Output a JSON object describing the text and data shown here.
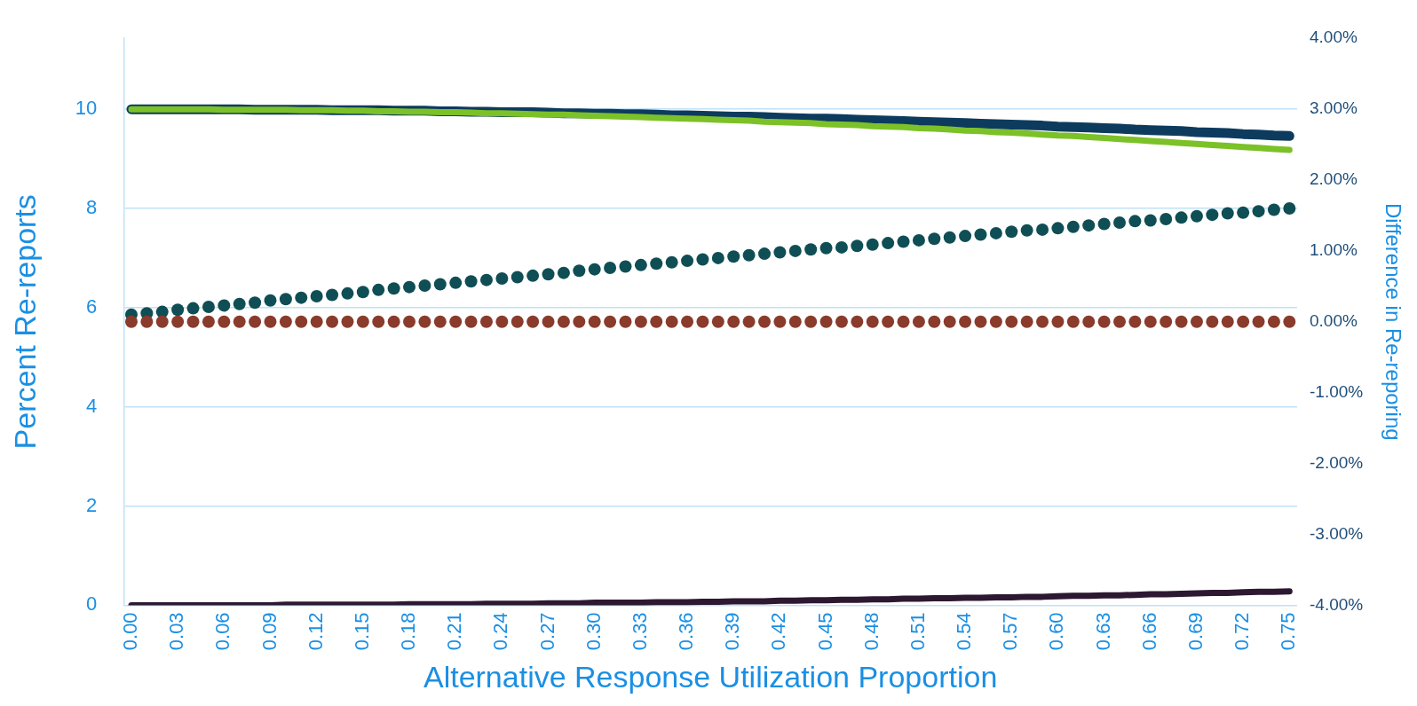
{
  "chart_data": {
    "type": "line",
    "xlabel": "Alternative Response Utilization Proportion",
    "ylabel": "Percent Re-reports",
    "y2label": "Difference in Re-reporing",
    "categories": [
      "0.00",
      null,
      null,
      "0.03",
      null,
      null,
      "0.06",
      null,
      null,
      "0.09",
      null,
      null,
      "0.12",
      null,
      null,
      "0.15",
      null,
      null,
      "0.18",
      null,
      null,
      "0.21",
      null,
      null,
      "0.24",
      null,
      null,
      "0.27",
      null,
      null,
      "0.30",
      null,
      null,
      "0.33",
      null,
      null,
      "0.36",
      null,
      null,
      "0.39",
      null,
      null,
      "0.42",
      null,
      null,
      "0.45",
      null,
      null,
      "0.48",
      null,
      null,
      "0.51",
      null,
      null,
      "0.54",
      null,
      null,
      "0.57",
      null,
      null,
      "0.60",
      null,
      null,
      "0.63",
      null,
      null,
      "0.66",
      null,
      null,
      "0.69",
      null,
      null,
      "0.72",
      null,
      null,
      "0.75"
    ],
    "ylim": [
      0,
      11.43
    ],
    "yticks": [
      0,
      2,
      4,
      6,
      8,
      10
    ],
    "y2lim": [
      -4,
      4
    ],
    "y2ticks": [
      {
        "value": -4,
        "label": "-4.00%"
      },
      {
        "value": -3,
        "label": "-3.00%"
      },
      {
        "value": -2,
        "label": "-2.00%"
      },
      {
        "value": -1,
        "label": "-1.00%"
      },
      {
        "value": 0,
        "label": "0.00%"
      },
      {
        "value": 1,
        "label": "1.00%"
      },
      {
        "value": 2,
        "label": "2.00%"
      },
      {
        "value": 3,
        "label": "3.00%"
      },
      {
        "value": 4,
        "label": "4.00%"
      }
    ],
    "grid": "y",
    "legend": false,
    "marker": "none",
    "line_style": "solid",
    "series": [
      {
        "type": "line",
        "color": "#0d3b5e",
        "values": [
          10,
          10,
          10,
          10,
          10,
          10,
          10,
          10,
          9.99,
          9.99,
          9.99,
          9.99,
          9.99,
          9.98,
          9.98,
          9.98,
          9.98,
          9.97,
          9.97,
          9.97,
          9.96,
          9.96,
          9.95,
          9.95,
          9.94,
          9.94,
          9.94,
          9.93,
          9.92,
          9.92,
          9.91,
          9.91,
          9.9,
          9.9,
          9.89,
          9.88,
          9.88,
          9.87,
          9.86,
          9.85,
          9.85,
          9.84,
          9.83,
          9.82,
          9.81,
          9.81,
          9.8,
          9.79,
          9.78,
          9.77,
          9.76,
          9.75,
          9.74,
          9.73,
          9.72,
          9.71,
          9.7,
          9.69,
          9.68,
          9.67,
          9.65,
          9.64,
          9.63,
          9.62,
          9.61,
          9.59,
          9.58,
          9.57,
          9.56,
          9.54,
          9.53,
          9.52,
          9.5,
          9.49,
          9.47,
          9.46
        ]
      },
      {
        "type": "line",
        "color": "#7cc128",
        "values": [
          10,
          10,
          10,
          10,
          10,
          10,
          9.99,
          9.99,
          9.99,
          9.99,
          9.99,
          9.98,
          9.98,
          9.98,
          9.97,
          9.97,
          9.96,
          9.96,
          9.95,
          9.95,
          9.94,
          9.94,
          9.93,
          9.92,
          9.92,
          9.91,
          9.9,
          9.89,
          9.89,
          9.88,
          9.87,
          9.86,
          9.85,
          9.84,
          9.83,
          9.82,
          9.81,
          9.8,
          9.79,
          9.78,
          9.77,
          9.75,
          9.74,
          9.73,
          9.72,
          9.7,
          9.69,
          9.68,
          9.66,
          9.65,
          9.64,
          9.62,
          9.61,
          9.59,
          9.57,
          9.56,
          9.54,
          9.53,
          9.51,
          9.49,
          9.47,
          9.46,
          9.44,
          9.42,
          9.4,
          9.38,
          9.36,
          9.34,
          9.32,
          9.3,
          9.28,
          9.26,
          9.24,
          9.22,
          9.2,
          9.18
        ]
      },
      {
        "type": "line",
        "color": "#2d1832",
        "values": [
          0,
          0,
          0,
          0,
          0,
          0,
          0,
          0,
          0,
          0,
          0.01,
          0.01,
          0.01,
          0.01,
          0.01,
          0.01,
          0.01,
          0.01,
          0.02,
          0.02,
          0.02,
          0.02,
          0.02,
          0.03,
          0.03,
          0.03,
          0.03,
          0.04,
          0.04,
          0.04,
          0.05,
          0.05,
          0.05,
          0.05,
          0.06,
          0.06,
          0.06,
          0.07,
          0.07,
          0.08,
          0.08,
          0.08,
          0.09,
          0.09,
          0.1,
          0.1,
          0.11,
          0.11,
          0.12,
          0.12,
          0.13,
          0.13,
          0.14,
          0.14,
          0.15,
          0.15,
          0.16,
          0.16,
          0.17,
          0.17,
          0.18,
          0.19,
          0.19,
          0.2,
          0.2,
          0.21,
          0.22,
          0.22,
          0.23,
          0.24,
          0.25,
          0.25,
          0.26,
          0.27,
          0.27,
          0.28
        ]
      },
      {
        "type": "scatter",
        "axis": "y2",
        "marker": "circle",
        "color": "#0f4e55",
        "values": [
          0.1,
          0.12,
          0.14,
          0.17,
          0.19,
          0.21,
          0.23,
          0.25,
          0.27,
          0.3,
          0.32,
          0.34,
          0.36,
          0.38,
          0.4,
          0.42,
          0.45,
          0.47,
          0.49,
          0.51,
          0.53,
          0.55,
          0.57,
          0.59,
          0.61,
          0.63,
          0.65,
          0.67,
          0.69,
          0.72,
          0.74,
          0.76,
          0.78,
          0.8,
          0.82,
          0.84,
          0.86,
          0.88,
          0.9,
          0.92,
          0.94,
          0.96,
          0.98,
          1,
          1.02,
          1.04,
          1.05,
          1.07,
          1.09,
          1.11,
          1.13,
          1.15,
          1.17,
          1.19,
          1.21,
          1.23,
          1.25,
          1.27,
          1.29,
          1.3,
          1.32,
          1.34,
          1.36,
          1.38,
          1.4,
          1.42,
          1.43,
          1.45,
          1.47,
          1.49,
          1.51,
          1.53,
          1.54,
          1.56,
          1.58,
          1.6
        ]
      },
      {
        "type": "scatter",
        "axis": "y2",
        "marker": "circle",
        "color": "#8a3b2b",
        "values": [
          0,
          0,
          0,
          0,
          0,
          0,
          0,
          0,
          0,
          0,
          0,
          0,
          0,
          0,
          0,
          0,
          0,
          0,
          0,
          0,
          0,
          0,
          0,
          0,
          0,
          0,
          0,
          0,
          0,
          0,
          0,
          0,
          0,
          0,
          0,
          0,
          0,
          0,
          0,
          0,
          0,
          0,
          0,
          0,
          0,
          0,
          0,
          0,
          0,
          0,
          0,
          0,
          0,
          0,
          0,
          0,
          0,
          0,
          0,
          0,
          0,
          0,
          0,
          0,
          0,
          0,
          0,
          0,
          0,
          0,
          0,
          0,
          0,
          0,
          0,
          0
        ]
      }
    ]
  }
}
